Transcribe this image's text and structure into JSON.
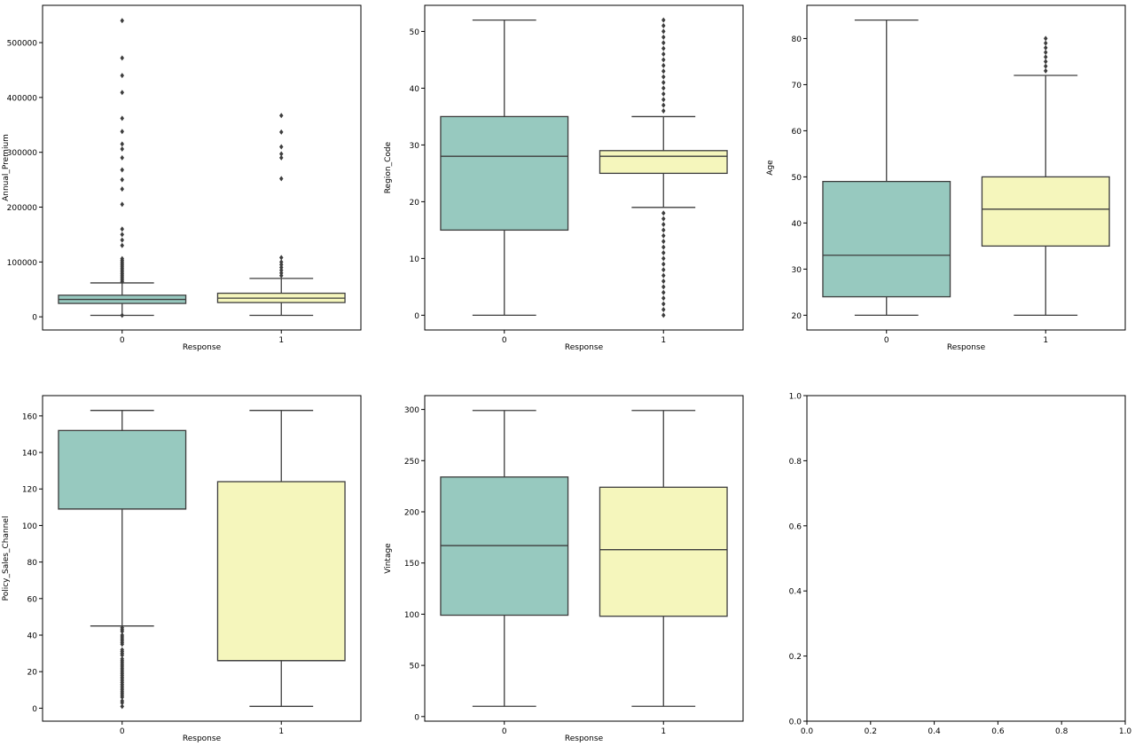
{
  "colors": {
    "box0": "#97c9bf",
    "box1": "#f5f6bc",
    "line": "#3d3d3d",
    "frame": "#000000"
  },
  "chart_data": [
    {
      "type": "box",
      "xlabel": "Response",
      "ylabel": "Annual_Premium",
      "categories": [
        "0",
        "1"
      ],
      "ylim": [
        -24000,
        568000
      ],
      "yticks": [
        0,
        100000,
        200000,
        300000,
        400000,
        500000
      ],
      "ytick_labels": [
        "0",
        "100000",
        "200000",
        "300000",
        "400000",
        "500000"
      ],
      "boxes": [
        {
          "whisker_low": 2630,
          "q1": 24400,
          "median": 31700,
          "q3": 39400,
          "whisker_high": 61800,
          "outliers": [
            2630,
            64000,
            67000,
            70000,
            73000,
            76000,
            79000,
            82000,
            85000,
            88000,
            91000,
            94000,
            97000,
            100000,
            103000,
            106000,
            130000,
            140000,
            150000,
            160000,
            205000,
            233000,
            250000,
            268000,
            290000,
            306000,
            315000,
            338000,
            362000,
            409000,
            440000,
            472000,
            540000
          ]
        },
        {
          "whisker_low": 2630,
          "q1": 26000,
          "median": 34000,
          "q3": 43000,
          "whisker_high": 70000,
          "outliers": [
            75000,
            80000,
            85000,
            90000,
            95000,
            100000,
            108000,
            252000,
            290000,
            297000,
            310000,
            337000,
            367000
          ]
        }
      ]
    },
    {
      "type": "box",
      "xlabel": "Response",
      "ylabel": "Region_Code",
      "categories": [
        "0",
        "1"
      ],
      "ylim": [
        -2.6,
        54.6
      ],
      "yticks": [
        0,
        10,
        20,
        30,
        40,
        50
      ],
      "ytick_labels": [
        "0",
        "10",
        "20",
        "30",
        "40",
        "50"
      ],
      "boxes": [
        {
          "whisker_low": 0,
          "q1": 15,
          "median": 28,
          "q3": 35,
          "whisker_high": 52,
          "outliers": []
        },
        {
          "whisker_low": 19,
          "q1": 25,
          "median": 28,
          "q3": 29,
          "whisker_high": 35,
          "outliers": [
            0,
            1,
            2,
            3,
            4,
            5,
            6,
            7,
            8,
            9,
            10,
            11,
            12,
            13,
            14,
            15,
            16,
            17,
            18,
            36,
            37,
            38,
            39,
            40,
            41,
            42,
            43,
            44,
            45,
            46,
            47,
            48,
            49,
            50,
            51,
            52
          ]
        }
      ]
    },
    {
      "type": "box",
      "xlabel": "Response",
      "ylabel": "Age",
      "categories": [
        "0",
        "1"
      ],
      "ylim": [
        16.8,
        87.2
      ],
      "yticks": [
        20,
        30,
        40,
        50,
        60,
        70,
        80
      ],
      "ytick_labels": [
        "20",
        "30",
        "40",
        "50",
        "60",
        "70",
        "80"
      ],
      "boxes": [
        {
          "whisker_low": 20,
          "q1": 24,
          "median": 33,
          "q3": 49,
          "whisker_high": 84,
          "outliers": []
        },
        {
          "whisker_low": 20,
          "q1": 35,
          "median": 43,
          "q3": 50,
          "whisker_high": 72,
          "outliers": [
            73,
            74,
            75,
            76,
            77,
            78,
            79,
            80
          ]
        }
      ]
    },
    {
      "type": "box",
      "xlabel": "Response",
      "ylabel": "Policy_Sales_Channel",
      "categories": [
        "0",
        "1"
      ],
      "ylim": [
        -7.1,
        171.1
      ],
      "yticks": [
        0,
        20,
        40,
        60,
        80,
        100,
        120,
        140,
        160
      ],
      "ytick_labels": [
        "0",
        "20",
        "40",
        "60",
        "80",
        "100",
        "120",
        "140",
        "160"
      ],
      "boxes": [
        {
          "whisker_low": 45,
          "q1": 109,
          "median": 109,
          "q3": 152,
          "whisker_high": 163,
          "outliers": [
            1,
            3,
            4,
            6,
            7,
            8,
            9,
            10,
            11,
            12,
            13,
            14,
            15,
            16,
            17,
            18,
            19,
            20,
            21,
            22,
            23,
            24,
            25,
            26,
            27,
            29,
            30,
            31,
            32,
            35,
            36,
            37,
            38,
            39,
            40,
            42,
            43,
            44
          ]
        },
        {
          "whisker_low": 1,
          "q1": 26,
          "median": 26,
          "q3": 124,
          "whisker_high": 163,
          "outliers": []
        }
      ]
    },
    {
      "type": "box",
      "xlabel": "Response",
      "ylabel": "Vintage",
      "categories": [
        "0",
        "1"
      ],
      "ylim": [
        -4.5,
        313.5
      ],
      "yticks": [
        0,
        50,
        100,
        150,
        200,
        250,
        300
      ],
      "ytick_labels": [
        "0",
        "50",
        "100",
        "150",
        "200",
        "250",
        "300"
      ],
      "boxes": [
        {
          "whisker_low": 10,
          "q1": 99,
          "median": 167,
          "q3": 234,
          "whisker_high": 299,
          "outliers": []
        },
        {
          "whisker_low": 10,
          "q1": 98,
          "median": 163,
          "q3": 224,
          "whisker_high": 299,
          "outliers": []
        }
      ]
    },
    {
      "type": "empty",
      "xlim": [
        0,
        1
      ],
      "ylim": [
        0,
        1
      ],
      "xticks": [
        0,
        0.2,
        0.4,
        0.6,
        0.8,
        1.0
      ],
      "xtick_labels": [
        "0.0",
        "0.2",
        "0.4",
        "0.6",
        "0.8",
        "1.0"
      ],
      "yticks": [
        0,
        0.2,
        0.4,
        0.6,
        0.8,
        1.0
      ],
      "ytick_labels": [
        "0.0",
        "0.2",
        "0.4",
        "0.6",
        "0.8",
        "1.0"
      ]
    }
  ]
}
